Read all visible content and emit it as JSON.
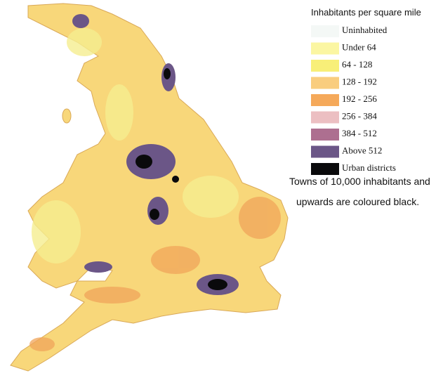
{
  "legend": {
    "title": "Inhabitants per square mile",
    "items": [
      {
        "label": "Uninhabited",
        "color": "#f4f8f6"
      },
      {
        "label": "Under 64",
        "color": "#fbf6a2"
      },
      {
        "label": "64 - 128",
        "color": "#f8ef78"
      },
      {
        "label": "128 - 192",
        "color": "#f9cd7e"
      },
      {
        "label": "192 - 256",
        "color": "#f5a95a"
      },
      {
        "label": "256 - 384",
        "color": "#ecbfc2"
      },
      {
        "label": "384 - 512",
        "color": "#ad6f90"
      },
      {
        "label": "Above 512",
        "color": "#6b5687"
      },
      {
        "label": "Urban districts",
        "color": "#0a0a0c"
      }
    ]
  },
  "note": [
    "Towns of 10,000 inhabitants and",
    "upwards are coloured black."
  ]
}
